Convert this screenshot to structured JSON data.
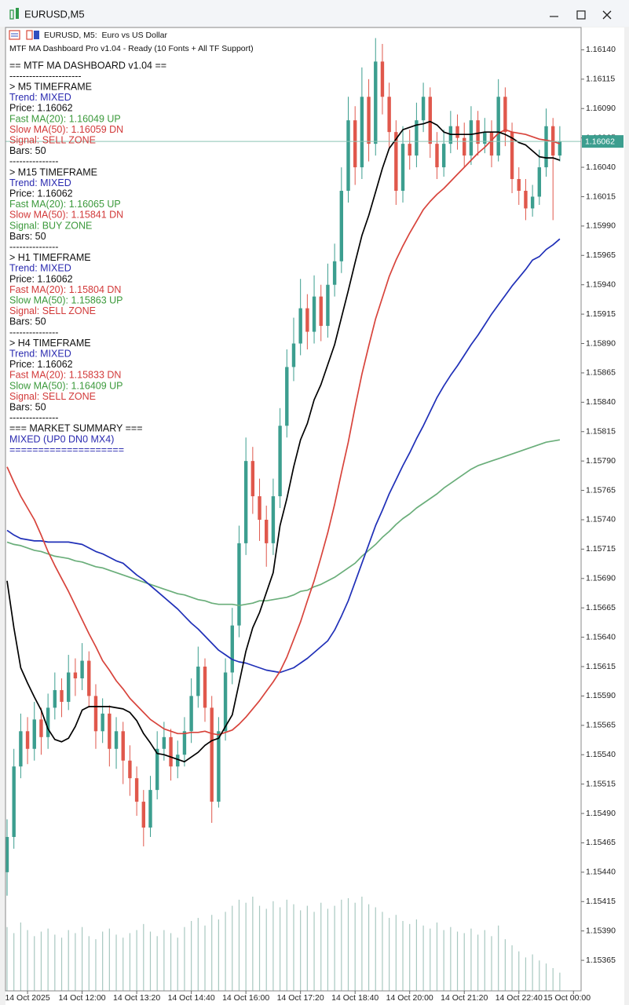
{
  "window": {
    "title": "EURUSD,M5"
  },
  "header": {
    "symbol_line": "EURUSD, M5:  Euro vs US Dollar",
    "status": "MTF MA Dashboard Pro v1.04 - Ready (10 Fonts + All TF Support)"
  },
  "dashboard": [
    {
      "text": "== MTF MA DASHBOARD v1.04 ==",
      "color": "#111111"
    },
    {
      "text": "----------------------",
      "color": "#111111"
    },
    {
      "text": "> M5 TIMEFRAME",
      "color": "#111111"
    },
    {
      "text": "Trend: MIXED",
      "color": "#2b2bb0"
    },
    {
      "text": "Price: 1.16062",
      "color": "#111111"
    },
    {
      "text": "Fast MA(20): 1.16049 UP",
      "color": "#3c9a3c"
    },
    {
      "text": "Slow MA(50): 1.16059 DN",
      "color": "#d23a3a"
    },
    {
      "text": "Signal: SELL ZONE",
      "color": "#d23a3a"
    },
    {
      "text": "Bars: 50",
      "color": "#111111"
    },
    {
      "text": "---------------",
      "color": "#111111"
    },
    {
      "text": "> M15 TIMEFRAME",
      "color": "#111111"
    },
    {
      "text": "Trend: MIXED",
      "color": "#2b2bb0"
    },
    {
      "text": "Price: 1.16062",
      "color": "#111111"
    },
    {
      "text": "Fast MA(20): 1.16065 UP",
      "color": "#3c9a3c"
    },
    {
      "text": "Slow MA(50): 1.15841 DN",
      "color": "#d23a3a"
    },
    {
      "text": "Signal: BUY ZONE",
      "color": "#3c9a3c"
    },
    {
      "text": "Bars: 50",
      "color": "#111111"
    },
    {
      "text": "---------------",
      "color": "#111111"
    },
    {
      "text": "> H1 TIMEFRAME",
      "color": "#111111"
    },
    {
      "text": "Trend: MIXED",
      "color": "#2b2bb0"
    },
    {
      "text": "Price: 1.16062",
      "color": "#111111"
    },
    {
      "text": "Fast MA(20): 1.15804 DN",
      "color": "#d23a3a"
    },
    {
      "text": "Slow MA(50): 1.15863 UP",
      "color": "#3c9a3c"
    },
    {
      "text": "Signal: SELL ZONE",
      "color": "#d23a3a"
    },
    {
      "text": "Bars: 50",
      "color": "#111111"
    },
    {
      "text": "---------------",
      "color": "#111111"
    },
    {
      "text": "> H4 TIMEFRAME",
      "color": "#111111"
    },
    {
      "text": "Trend: MIXED",
      "color": "#2b2bb0"
    },
    {
      "text": "Price: 1.16062",
      "color": "#111111"
    },
    {
      "text": "Fast MA(20): 1.15833 DN",
      "color": "#d23a3a"
    },
    {
      "text": "Slow MA(50): 1.16409 UP",
      "color": "#3c9a3c"
    },
    {
      "text": "Signal: SELL ZONE",
      "color": "#d23a3a"
    },
    {
      "text": "Bars: 50",
      "color": "#111111"
    },
    {
      "text": "---------------",
      "color": "#111111"
    },
    {
      "text": "=== MARKET SUMMARY ===",
      "color": "#111111"
    },
    {
      "text": "MIXED (UP0 DN0 MX4)",
      "color": "#2b2bb0"
    },
    {
      "text": "====================",
      "color": "#2b2bb0"
    }
  ],
  "chart_data": {
    "type": "candlestick",
    "grid": false,
    "bull_color": "#3c9e8f",
    "bear_color": "#e0584c",
    "volume_color": "#a8c8c0",
    "price_line_color": "#8cc4b4",
    "last_price": 1.16062,
    "ylim": [
      1.15339,
      1.16159
    ],
    "yticks": [
      {
        "value": 1.1614,
        "label": "1.16140"
      },
      1.16115,
      {
        "value": 1.1609,
        "label": "1.16090"
      },
      1.16065,
      {
        "value": 1.1604,
        "label": "1.16040"
      },
      1.16015,
      {
        "value": 1.1599,
        "label": "1.15990"
      },
      1.15965,
      {
        "value": 1.1594,
        "label": "1.15940"
      },
      1.15915,
      {
        "value": 1.1589,
        "label": "1.15890"
      },
      1.15865,
      {
        "value": 1.1584,
        "label": "1.15840"
      },
      1.15815,
      {
        "value": 1.1579,
        "label": "1.15790"
      },
      1.15765,
      {
        "value": 1.1574,
        "label": "1.15740"
      },
      1.15715,
      {
        "value": 1.1569,
        "label": "1.15690"
      },
      1.15665,
      {
        "value": 1.1564,
        "label": "1.15640"
      },
      1.15615,
      {
        "value": 1.1559,
        "label": "1.15590"
      },
      1.15565,
      {
        "value": 1.1554,
        "label": "1.15540"
      },
      1.15515,
      {
        "value": 1.1549,
        "label": "1.15490"
      },
      1.15465,
      {
        "value": 1.1544,
        "label": "1.15440"
      },
      1.15415,
      {
        "value": 1.1539,
        "label": "1.15390"
      },
      1.15365
    ],
    "categories": [
      null,
      null,
      null,
      "14 Oct 2025",
      null,
      null,
      null,
      null,
      null,
      null,
      null,
      "14 Oct 12:00",
      null,
      null,
      null,
      null,
      null,
      null,
      null,
      "14 Oct 13:20",
      null,
      null,
      null,
      null,
      null,
      null,
      null,
      "14 Oct 14:40",
      null,
      null,
      null,
      null,
      null,
      null,
      null,
      "14 Oct 16:00",
      null,
      null,
      null,
      null,
      null,
      null,
      null,
      "14 Oct 17:20",
      null,
      null,
      null,
      null,
      null,
      null,
      null,
      "14 Oct 18:40",
      null,
      null,
      null,
      null,
      null,
      null,
      null,
      "14 Oct 20:00",
      null,
      null,
      null,
      null,
      null,
      null,
      null,
      "14 Oct 21:20",
      null,
      null,
      null,
      null,
      null,
      null,
      null,
      "14 Oct 22:40",
      null,
      null,
      null,
      null,
      null,
      null,
      null,
      "15 Oct 00:00"
    ],
    "open": [
      1.1544,
      1.1547,
      1.1553,
      1.1556,
      1.15545,
      1.1557,
      1.15555,
      1.1558,
      1.15595,
      1.15585,
      1.1561,
      1.15605,
      1.1562,
      1.1559,
      1.1556,
      1.15575,
      1.15545,
      1.1556,
      1.15535,
      1.1552,
      1.155,
      1.15478,
      1.1551,
      1.15545,
      1.15555,
      1.1553,
      1.1554,
      1.1556,
      1.1559,
      1.15615,
      1.1558,
      1.155,
      1.1556,
      1.1561,
      1.1565,
      1.1572,
      1.1579,
      1.1576,
      1.1574,
      1.1572,
      1.1576,
      1.1582,
      1.1587,
      1.1589,
      1.1592,
      1.159,
      1.1593,
      1.15905,
      1.1594,
      1.1596,
      1.1602,
      1.1608,
      1.1604,
      1.161,
      1.1606,
      1.1613,
      1.161,
      1.1607,
      1.1602,
      1.1606,
      1.1605,
      1.1608,
      1.161,
      1.1606,
      1.1604,
      1.1606,
      1.16075,
      1.16065,
      1.1605,
      1.1608,
      1.1606,
      1.1607,
      1.1605,
      1.161,
      1.1607,
      1.1603,
      1.1602,
      1.16005,
      1.16015,
      1.1604,
      1.16075,
      1.1605,
      null,
      null
    ],
    "high": [
      1.15485,
      1.15545,
      1.15575,
      1.15572,
      1.15585,
      1.1558,
      1.15592,
      1.1561,
      1.15605,
      1.15625,
      1.15622,
      1.15635,
      1.15628,
      1.156,
      1.15588,
      1.15582,
      1.15572,
      1.15568,
      1.15548,
      1.1553,
      1.1551,
      1.15522,
      1.1556,
      1.15568,
      1.15562,
      1.15552,
      1.15572,
      1.15605,
      1.15632,
      1.15622,
      1.1559,
      1.15572,
      1.15622,
      1.15665,
      1.15735,
      1.1581,
      1.15802,
      1.15775,
      1.15752,
      1.15775,
      1.15835,
      1.15885,
      1.15912,
      1.15945,
      1.15932,
      1.15948,
      1.1594,
      1.15958,
      1.15975,
      1.1604,
      1.161,
      1.16092,
      1.16125,
      1.16115,
      1.1615,
      1.16145,
      1.16112,
      1.1608,
      1.16075,
      1.16072,
      1.16095,
      1.16112,
      1.16108,
      1.1607,
      1.16072,
      1.16088,
      1.16085,
      1.16078,
      1.16092,
      1.16088,
      1.16082,
      1.1608,
      1.16115,
      1.16108,
      1.16078,
      1.1604,
      1.1603,
      1.16025,
      1.16055,
      1.1609,
      1.16082,
      1.16075,
      null,
      null
    ],
    "low": [
      1.1542,
      1.1546,
      1.1552,
      1.15532,
      1.15535,
      1.1554,
      1.15545,
      1.1557,
      1.15572,
      1.15578,
      1.1559,
      1.15595,
      1.1558,
      1.15545,
      1.1555,
      1.1553,
      1.15528,
      1.15515,
      1.15505,
      1.15488,
      1.15462,
      1.1547,
      1.15502,
      1.15535,
      1.15518,
      1.1552,
      1.1553,
      1.1555,
      1.1558,
      1.15568,
      1.15482,
      1.15495,
      1.15552,
      1.156,
      1.1564,
      1.1571,
      1.15745,
      1.15722,
      1.157,
      1.1571,
      1.1575,
      1.1581,
      1.15858,
      1.1588,
      1.15885,
      1.1589,
      1.15892,
      1.15895,
      1.1593,
      1.1595,
      1.1601,
      1.16025,
      1.1603,
      1.16045,
      1.1605,
      1.16085,
      1.16055,
      1.16008,
      1.1601,
      1.16038,
      1.1604,
      1.1607,
      1.16048,
      1.1603,
      1.16032,
      1.16052,
      1.16055,
      1.1604,
      1.16042,
      1.1605,
      1.16052,
      1.1604,
      1.16045,
      1.16058,
      1.16018,
      1.16008,
      1.15995,
      1.15998,
      1.16008,
      1.16032,
      1.15995,
      1.16045,
      null,
      null
    ],
    "close": [
      1.1547,
      1.1553,
      1.1556,
      1.15545,
      1.1557,
      1.15555,
      1.1558,
      1.15595,
      1.15585,
      1.1561,
      1.15605,
      1.1562,
      1.1559,
      1.1556,
      1.15575,
      1.15545,
      1.1556,
      1.15535,
      1.1552,
      1.155,
      1.15478,
      1.1551,
      1.15545,
      1.15555,
      1.1553,
      1.1554,
      1.1556,
      1.1559,
      1.15615,
      1.1558,
      1.155,
      1.1556,
      1.1561,
      1.1565,
      1.1572,
      1.1579,
      1.1576,
      1.1574,
      1.1572,
      1.1576,
      1.1582,
      1.1587,
      1.1589,
      1.1592,
      1.159,
      1.1593,
      1.15905,
      1.1594,
      1.1596,
      1.1602,
      1.1608,
      1.1604,
      1.161,
      1.1606,
      1.1613,
      1.161,
      1.1607,
      1.1602,
      1.1606,
      1.1605,
      1.1608,
      1.161,
      1.1606,
      1.1604,
      1.1606,
      1.16075,
      1.16065,
      1.1605,
      1.1608,
      1.1606,
      1.1607,
      1.1605,
      1.161,
      1.1607,
      1.1603,
      1.1602,
      1.16005,
      1.16015,
      1.1604,
      1.16075,
      1.1605,
      1.16062,
      null,
      null
    ],
    "volumes": [
      420,
      380,
      450,
      400,
      360,
      390,
      410,
      370,
      350,
      400,
      380,
      420,
      360,
      340,
      390,
      410,
      370,
      350,
      380,
      400,
      440,
      390,
      360,
      400,
      380,
      350,
      420,
      460,
      480,
      430,
      500,
      470,
      520,
      560,
      600,
      580,
      620,
      560,
      540,
      590,
      550,
      600,
      570,
      530,
      560,
      520,
      580,
      540,
      560,
      600,
      610,
      580,
      620,
      570,
      550,
      520,
      480,
      500,
      460,
      440,
      470,
      430,
      410,
      450,
      400,
      420,
      390,
      380,
      410,
      370,
      400,
      360,
      430,
      340,
      300,
      260,
      220,
      240,
      200,
      180,
      150,
      120,
      null,
      null
    ],
    "lines": [
      {
        "color": "#6aae7a",
        "values": [
          1.15721,
          1.15719,
          1.15718,
          1.15716,
          1.15714,
          1.15713,
          1.15711,
          1.15709,
          1.15708,
          1.15707,
          1.15705,
          1.15704,
          1.15702,
          1.157,
          1.15699,
          1.15697,
          1.15695,
          1.15693,
          1.15691,
          1.15689,
          1.15687,
          1.15685,
          1.15683,
          1.15681,
          1.15679,
          1.15677,
          1.15676,
          1.15674,
          1.15672,
          1.15671,
          1.15669,
          1.15668,
          1.15668,
          1.15668,
          1.15667,
          1.15668,
          1.15669,
          1.15671,
          1.15671,
          1.15672,
          1.15673,
          1.15674,
          1.15676,
          1.15679,
          1.1568,
          1.15683,
          1.15685,
          1.15688,
          1.15691,
          1.15695,
          1.15699,
          1.15703,
          1.15709,
          1.15714,
          1.15719,
          1.15725,
          1.1573,
          1.15736,
          1.15741,
          1.15745,
          1.1575,
          1.15754,
          1.15758,
          1.15762,
          1.15767,
          1.15771,
          1.15775,
          1.15779,
          1.15783,
          1.15786,
          1.15788,
          1.1579,
          1.15792,
          1.15794,
          1.15796,
          1.15798,
          1.158,
          1.15802,
          1.15804,
          1.15806,
          1.15807,
          1.15808,
          null,
          null
        ]
      },
      {
        "color": "#2030b8",
        "values": [
          1.15731,
          1.15727,
          1.15724,
          1.15723,
          1.15722,
          1.15722,
          1.15721,
          1.15721,
          1.15721,
          1.15721,
          1.1572,
          1.15719,
          1.15716,
          1.15713,
          1.15711,
          1.15708,
          1.15705,
          1.15703,
          1.15698,
          1.15693,
          1.15689,
          1.15684,
          1.15679,
          1.15674,
          1.15669,
          1.15664,
          1.15658,
          1.15652,
          1.15647,
          1.15641,
          1.15635,
          1.15629,
          1.15625,
          1.15621,
          1.15619,
          1.15618,
          1.15616,
          1.15614,
          1.15612,
          1.15611,
          1.1561,
          1.15612,
          1.15614,
          1.15618,
          1.15622,
          1.15627,
          1.15632,
          1.15637,
          1.15646,
          1.15658,
          1.15671,
          1.15687,
          1.15703,
          1.15719,
          1.15735,
          1.15748,
          1.15762,
          1.15774,
          1.15786,
          1.15797,
          1.15809,
          1.1582,
          1.15832,
          1.15844,
          1.15854,
          1.15863,
          1.15871,
          1.1588,
          1.15889,
          1.15897,
          1.15906,
          1.15915,
          1.15923,
          1.15931,
          1.15939,
          1.15946,
          1.15953,
          1.15961,
          1.15964,
          1.1597,
          1.15974,
          1.15979,
          null,
          null
        ]
      },
      {
        "color": "#d8443c",
        "values": [
          1.15785,
          1.15772,
          1.1576,
          1.1575,
          1.1574,
          1.15727,
          1.15713,
          1.15701,
          1.1569,
          1.15679,
          1.15667,
          1.15655,
          1.15643,
          1.15632,
          1.1562,
          1.15612,
          1.15603,
          1.15596,
          1.15588,
          1.15582,
          1.15576,
          1.1557,
          1.15566,
          1.15562,
          1.1556,
          1.15558,
          1.15558,
          1.15559,
          1.15559,
          1.1556,
          1.15558,
          1.15557,
          1.15559,
          1.15561,
          1.15566,
          1.15572,
          1.15579,
          1.15586,
          1.15594,
          1.15602,
          1.15611,
          1.15623,
          1.15638,
          1.15653,
          1.15671,
          1.15688,
          1.15708,
          1.15729,
          1.15753,
          1.1578,
          1.15806,
          1.15836,
          1.15864,
          1.15888,
          1.15911,
          1.15929,
          1.15947,
          1.15961,
          1.15973,
          1.15984,
          1.15994,
          1.16004,
          1.16011,
          1.16017,
          1.16022,
          1.16028,
          1.16034,
          1.1604,
          1.16046,
          1.16052,
          1.16057,
          1.16063,
          1.16069,
          1.16072,
          1.1607,
          1.16069,
          1.16068,
          1.16066,
          1.16064,
          1.16063,
          1.16062,
          1.1606,
          null,
          null
        ]
      },
      {
        "color": "#000000",
        "values": [
          1.15688,
          1.15648,
          1.15614,
          1.15601,
          1.15589,
          1.15578,
          1.15562,
          1.15553,
          1.15551,
          1.15554,
          1.15564,
          1.15578,
          1.15581,
          1.15581,
          1.15581,
          1.15581,
          1.1558,
          1.15579,
          1.15576,
          1.15569,
          1.15558,
          1.1555,
          1.15541,
          1.1554,
          1.15538,
          1.15536,
          1.15534,
          1.15538,
          1.15542,
          1.15548,
          1.15552,
          1.15554,
          1.15564,
          1.15574,
          1.15601,
          1.15628,
          1.15648,
          1.15661,
          1.15678,
          1.15695,
          1.15735,
          1.15758,
          1.15785,
          1.15808,
          1.15822,
          1.15842,
          1.15855,
          1.15872,
          1.15889,
          1.15912,
          1.15935,
          1.15959,
          1.15982,
          1.15999,
          1.16019,
          1.16039,
          1.16056,
          1.16064,
          1.16072,
          1.16074,
          1.16076,
          1.16077,
          1.16079,
          1.16076,
          1.1607,
          1.16068,
          1.16068,
          1.16068,
          1.16068,
          1.16069,
          1.1607,
          1.1607,
          1.1607,
          1.16068,
          1.16065,
          1.16061,
          1.16059,
          1.16054,
          1.16049,
          1.16048,
          1.16048,
          1.16046,
          null,
          null
        ]
      }
    ]
  }
}
